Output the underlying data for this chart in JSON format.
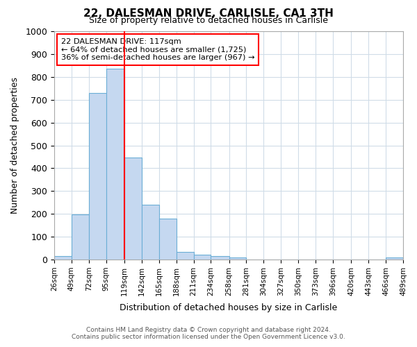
{
  "title": "22, DALESMAN DRIVE, CARLISLE, CA1 3TH",
  "subtitle": "Size of property relative to detached houses in Carlisle",
  "xlabel": "Distribution of detached houses by size in Carlisle",
  "ylabel": "Number of detached properties",
  "bar_edges": [
    26,
    49,
    72,
    95,
    119,
    142,
    165,
    188,
    211,
    234,
    258,
    281,
    304,
    327,
    350,
    373,
    396,
    420,
    443,
    466,
    489
  ],
  "bar_heights": [
    15,
    197,
    730,
    835,
    448,
    240,
    178,
    35,
    22,
    14,
    8,
    1,
    0,
    0,
    0,
    0,
    0,
    0,
    0,
    8
  ],
  "bar_color": "#c5d8f0",
  "bar_edge_color": "#6baed6",
  "vline_x": 119,
  "vline_color": "#ff0000",
  "ylim": [
    0,
    1000
  ],
  "annotation_text": "22 DALESMAN DRIVE: 117sqm\n← 64% of detached houses are smaller (1,725)\n36% of semi-detached houses are larger (967) →",
  "annotation_box_color": "#ffffff",
  "annotation_box_edge_color": "#ff0000",
  "tick_labels": [
    "26sqm",
    "49sqm",
    "72sqm",
    "95sqm",
    "119sqm",
    "142sqm",
    "165sqm",
    "188sqm",
    "211sqm",
    "234sqm",
    "258sqm",
    "281sqm",
    "304sqm",
    "327sqm",
    "350sqm",
    "373sqm",
    "396sqm",
    "420sqm",
    "443sqm",
    "466sqm",
    "489sqm"
  ],
  "footer_line1": "Contains HM Land Registry data © Crown copyright and database right 2024.",
  "footer_line2": "Contains public sector information licensed under the Open Government Licence v3.0.",
  "background_color": "#ffffff",
  "grid_color": "#d0dce8"
}
